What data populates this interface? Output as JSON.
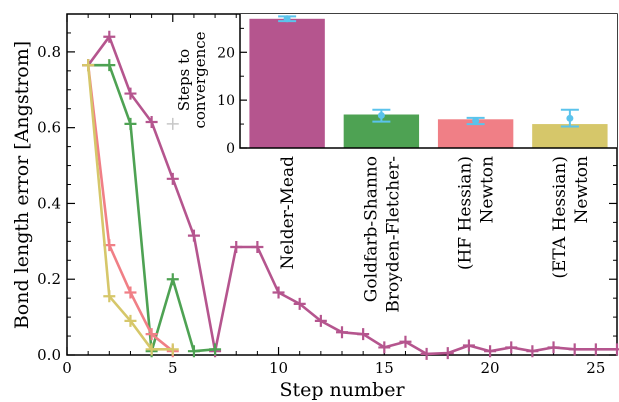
{
  "chart_data": [
    {
      "type": "line",
      "xlabel": "Step number",
      "ylabel": "Bond length error [Angstrom]",
      "xlim": [
        0,
        26
      ],
      "ylim": [
        0,
        0.9
      ],
      "xticks": [
        0,
        5,
        10,
        15,
        20,
        25
      ],
      "yticks": [
        0.0,
        0.2,
        0.4,
        0.6,
        0.8
      ],
      "ytick_labels": [
        "0.0",
        "0.2",
        "0.4",
        "0.6",
        "0.8"
      ],
      "marker": "+",
      "legend": "none",
      "series": [
        {
          "color": "#b5558e",
          "x": [
            1,
            2,
            3,
            4,
            5,
            6,
            7,
            8,
            9,
            10,
            11,
            12,
            13,
            14,
            15,
            16,
            17,
            18,
            19,
            20,
            21,
            22,
            23,
            24,
            25,
            26
          ],
          "y": [
            0.765,
            0.84,
            0.69,
            0.615,
            0.465,
            0.315,
            0.01,
            0.285,
            0.285,
            0.165,
            0.135,
            0.09,
            0.06,
            0.055,
            0.02,
            0.035,
            0.003,
            0.005,
            0.025,
            0.01,
            0.02,
            0.01,
            0.02,
            0.015,
            0.015,
            0.015
          ]
        },
        {
          "color": "#4ea253",
          "x": [
            1,
            2,
            3,
            4,
            5,
            6,
            7
          ],
          "y": [
            0.765,
            0.765,
            0.61,
            0.01,
            0.2,
            0.01,
            0.015
          ]
        },
        {
          "color": "#f07f86",
          "x": [
            1,
            2,
            3,
            4,
            5
          ],
          "y": [
            0.765,
            0.29,
            0.165,
            0.055,
            0.01
          ]
        },
        {
          "color": "#d6c76a",
          "x": [
            1,
            2,
            3,
            4,
            5
          ],
          "y": [
            0.765,
            0.155,
            0.09,
            0.015,
            0.015
          ]
        }
      ],
      "annotations": [
        {
          "x": 5,
          "y": 0.61,
          "marker": "+",
          "color": "#c8c8c8"
        }
      ]
    },
    {
      "type": "bar",
      "ylabel": "Steps to\nconvergence",
      "ylim": [
        0,
        28
      ],
      "yticks": [
        0,
        10,
        20
      ],
      "categories": [
        "Nelder-Mead",
        "Broyden-Fletcher-\nGoldfarb-Shanno",
        "Newton\n(HF Hessian)",
        "Newton\n(ETA Hessian)"
      ],
      "values": [
        27,
        7,
        6,
        5
      ],
      "errors": [
        {
          "mean": 27,
          "low": 26.5,
          "high": 27.5
        },
        {
          "mean": 6.8,
          "low": 5.5,
          "high": 8
        },
        {
          "mean": 5.7,
          "low": 5,
          "high": 6.3
        },
        {
          "mean": 6.2,
          "low": 4.5,
          "high": 8
        }
      ],
      "colors": [
        "#b5558e",
        "#4ea253",
        "#f07f86",
        "#d6c76a"
      ],
      "error_color": "#5bc3ec"
    }
  ]
}
